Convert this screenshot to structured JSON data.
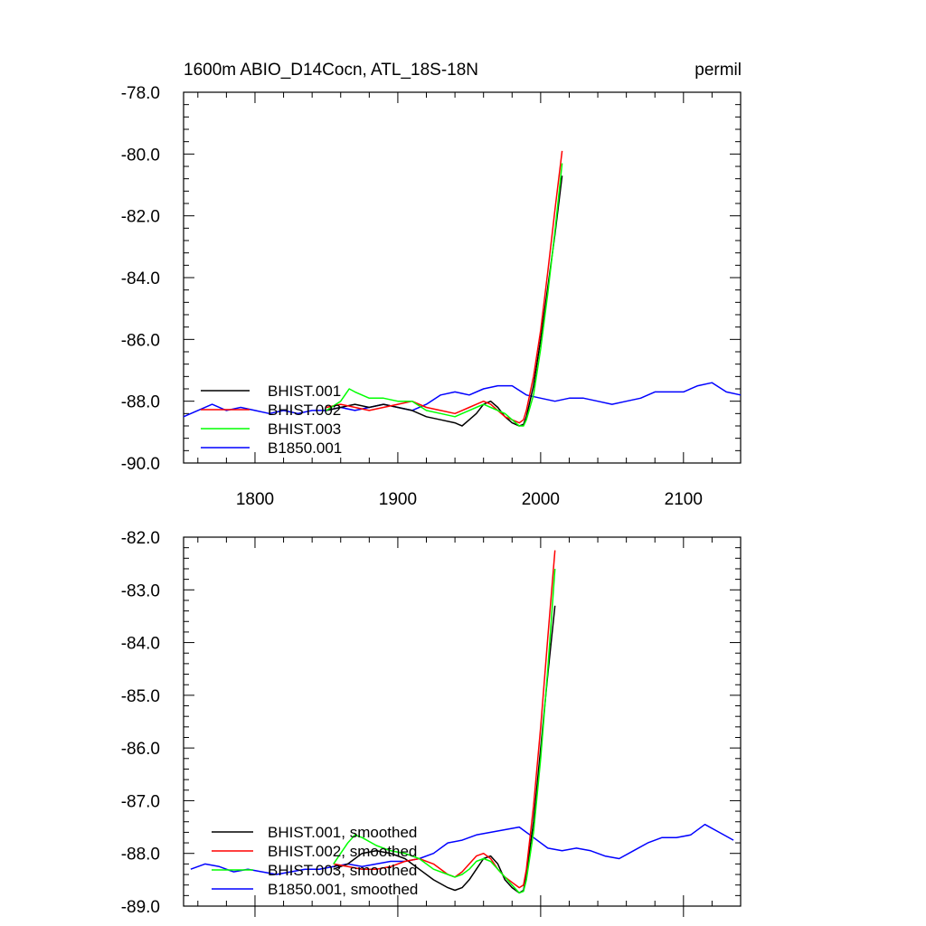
{
  "header": {
    "title": "1600m ABIO_D14Cocn, ATL_18S-18N",
    "units": "permil"
  },
  "colors": {
    "BHIST.001": "#000000",
    "BHIST.002": "#ff0000",
    "BHIST.003": "#00ff00",
    "B1850.001": "#0000ff"
  },
  "chart_data": [
    {
      "type": "line",
      "title": "1600m ABIO_D14Cocn, ATL_18S-18N",
      "units": "permil",
      "xlim": [
        1750,
        2140
      ],
      "ylim": [
        -90.0,
        -78.0
      ],
      "xticks": [
        1800,
        1900,
        2000,
        2100
      ],
      "xtick_labels": [
        "1800",
        "1900",
        "2000",
        "2100"
      ],
      "yticks": [
        -90.0,
        -88.0,
        -86.0,
        -84.0,
        -82.0,
        -80.0,
        -78.0
      ],
      "ytick_labels": [
        "-90.0",
        "-88.0",
        "-86.0",
        "-84.0",
        "-82.0",
        "-80.0",
        "-78.0"
      ],
      "legend_position": "bottom-left",
      "series": [
        {
          "name": "BHIST.001",
          "x": [
            1850,
            1860,
            1870,
            1880,
            1890,
            1900,
            1910,
            1920,
            1930,
            1940,
            1945,
            1950,
            1955,
            1960,
            1965,
            1970,
            1975,
            1980,
            1985,
            1988,
            1990,
            1995,
            2000,
            2005,
            2010,
            2015
          ],
          "y": [
            -88.3,
            -88.2,
            -88.1,
            -88.2,
            -88.1,
            -88.2,
            -88.3,
            -88.5,
            -88.6,
            -88.7,
            -88.8,
            -88.6,
            -88.4,
            -88.1,
            -88.0,
            -88.2,
            -88.5,
            -88.7,
            -88.8,
            -88.75,
            -88.5,
            -87.5,
            -86.0,
            -84.3,
            -82.6,
            -80.7
          ]
        },
        {
          "name": "BHIST.002",
          "x": [
            1850,
            1860,
            1870,
            1880,
            1890,
            1900,
            1910,
            1920,
            1930,
            1940,
            1945,
            1950,
            1955,
            1960,
            1965,
            1970,
            1975,
            1980,
            1985,
            1988,
            1990,
            1995,
            2000,
            2005,
            2010,
            2015
          ],
          "y": [
            -88.2,
            -88.1,
            -88.2,
            -88.3,
            -88.2,
            -88.1,
            -88.0,
            -88.2,
            -88.3,
            -88.4,
            -88.3,
            -88.2,
            -88.1,
            -88.0,
            -88.1,
            -88.3,
            -88.5,
            -88.6,
            -88.7,
            -88.6,
            -88.3,
            -87.2,
            -85.7,
            -83.8,
            -81.8,
            -79.9
          ]
        },
        {
          "name": "BHIST.003",
          "x": [
            1850,
            1860,
            1866,
            1870,
            1880,
            1890,
            1900,
            1910,
            1920,
            1930,
            1940,
            1945,
            1950,
            1955,
            1960,
            1965,
            1970,
            1975,
            1980,
            1985,
            1988,
            1990,
            1995,
            2000,
            2005,
            2010,
            2015
          ],
          "y": [
            -88.3,
            -88.0,
            -87.6,
            -87.7,
            -87.9,
            -87.9,
            -88.0,
            -88.0,
            -88.3,
            -88.4,
            -88.5,
            -88.4,
            -88.3,
            -88.2,
            -88.1,
            -88.2,
            -88.3,
            -88.4,
            -88.6,
            -88.8,
            -88.8,
            -88.6,
            -87.8,
            -86.3,
            -84.5,
            -82.5,
            -80.3
          ]
        },
        {
          "name": "B1850.001",
          "x": [
            1750,
            1760,
            1770,
            1780,
            1790,
            1800,
            1810,
            1820,
            1830,
            1840,
            1850,
            1860,
            1870,
            1880,
            1890,
            1900,
            1910,
            1920,
            1930,
            1940,
            1950,
            1960,
            1970,
            1980,
            1990,
            2000,
            2010,
            2020,
            2030,
            2040,
            2050,
            2060,
            2070,
            2080,
            2090,
            2100,
            2110,
            2120,
            2130,
            2140
          ],
          "y": [
            -88.5,
            -88.3,
            -88.1,
            -88.3,
            -88.2,
            -88.3,
            -88.4,
            -88.3,
            -88.4,
            -88.3,
            -88.3,
            -88.2,
            -88.3,
            -88.2,
            -88.1,
            -88.2,
            -88.3,
            -88.1,
            -87.8,
            -87.7,
            -87.8,
            -87.6,
            -87.5,
            -87.5,
            -87.8,
            -87.9,
            -88.0,
            -87.9,
            -87.9,
            -88.0,
            -88.1,
            -88.0,
            -87.9,
            -87.7,
            -87.7,
            -87.7,
            -87.5,
            -87.4,
            -87.7,
            -87.8
          ]
        }
      ]
    },
    {
      "type": "line",
      "xlim": [
        1750,
        2140
      ],
      "ylim": [
        -89.0,
        -82.0
      ],
      "xticks": [
        1800,
        1900,
        2000,
        2100
      ],
      "yticks": [
        -89.0,
        -88.0,
        -87.0,
        -86.0,
        -85.0,
        -84.0,
        -83.0,
        -82.0
      ],
      "ytick_labels": [
        "-89.0",
        "-88.0",
        "-87.0",
        "-86.0",
        "-85.0",
        "-84.0",
        "-83.0",
        "-82.0"
      ],
      "legend_position": "bottom-left",
      "series": [
        {
          "name": "BHIST.001, smoothed",
          "x": [
            1855,
            1865,
            1875,
            1885,
            1895,
            1905,
            1915,
            1925,
            1935,
            1940,
            1945,
            1950,
            1955,
            1960,
            1965,
            1970,
            1975,
            1980,
            1985,
            1988,
            1990,
            1995,
            2000,
            2005,
            2010
          ],
          "y": [
            -88.3,
            -88.2,
            -88.0,
            -87.95,
            -88.0,
            -88.1,
            -88.3,
            -88.5,
            -88.65,
            -88.7,
            -88.65,
            -88.5,
            -88.3,
            -88.1,
            -88.05,
            -88.2,
            -88.5,
            -88.65,
            -88.75,
            -88.7,
            -88.4,
            -87.4,
            -86.0,
            -84.6,
            -83.3
          ]
        },
        {
          "name": "BHIST.002, smoothed",
          "x": [
            1855,
            1865,
            1875,
            1885,
            1895,
            1905,
            1915,
            1925,
            1935,
            1940,
            1945,
            1950,
            1955,
            1960,
            1965,
            1970,
            1975,
            1980,
            1985,
            1988,
            1990,
            1995,
            2000,
            2005,
            2010
          ],
          "y": [
            -88.2,
            -88.25,
            -88.3,
            -88.3,
            -88.25,
            -88.15,
            -88.1,
            -88.2,
            -88.4,
            -88.45,
            -88.35,
            -88.2,
            -88.05,
            -88.0,
            -88.1,
            -88.3,
            -88.45,
            -88.55,
            -88.65,
            -88.6,
            -88.3,
            -87.1,
            -85.6,
            -83.9,
            -82.25
          ]
        },
        {
          "name": "BHIST.003, smoothed",
          "x": [
            1855,
            1860,
            1865,
            1870,
            1875,
            1885,
            1895,
            1905,
            1915,
            1925,
            1935,
            1940,
            1945,
            1950,
            1955,
            1960,
            1965,
            1970,
            1975,
            1980,
            1985,
            1988,
            1990,
            1995,
            2000,
            2005,
            2010
          ],
          "y": [
            -88.2,
            -88.0,
            -87.8,
            -87.65,
            -87.7,
            -87.85,
            -87.95,
            -88.0,
            -88.1,
            -88.3,
            -88.4,
            -88.45,
            -88.4,
            -88.3,
            -88.15,
            -88.1,
            -88.15,
            -88.3,
            -88.45,
            -88.6,
            -88.75,
            -88.72,
            -88.5,
            -87.6,
            -86.2,
            -84.5,
            -82.6
          ]
        },
        {
          "name": "B1850.001, smoothed",
          "x": [
            1755,
            1765,
            1775,
            1785,
            1795,
            1805,
            1815,
            1825,
            1835,
            1845,
            1855,
            1865,
            1875,
            1885,
            1895,
            1905,
            1915,
            1925,
            1935,
            1945,
            1955,
            1965,
            1975,
            1985,
            1995,
            2005,
            2015,
            2025,
            2035,
            2045,
            2055,
            2065,
            2075,
            2085,
            2095,
            2105,
            2115,
            2125,
            2135
          ],
          "y": [
            -88.3,
            -88.2,
            -88.25,
            -88.35,
            -88.3,
            -88.35,
            -88.4,
            -88.35,
            -88.3,
            -88.3,
            -88.25,
            -88.2,
            -88.25,
            -88.2,
            -88.15,
            -88.15,
            -88.1,
            -88.0,
            -87.8,
            -87.75,
            -87.65,
            -87.6,
            -87.55,
            -87.5,
            -87.7,
            -87.9,
            -87.95,
            -87.9,
            -87.95,
            -88.05,
            -88.1,
            -87.95,
            -87.8,
            -87.7,
            -87.7,
            -87.65,
            -87.45,
            -87.6,
            -87.75
          ]
        }
      ]
    }
  ]
}
